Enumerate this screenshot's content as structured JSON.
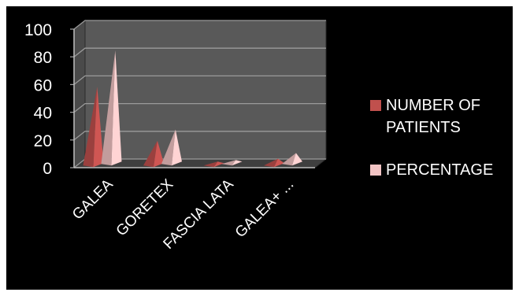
{
  "chart_data": {
    "type": "bar",
    "style": "3d-pyramid",
    "title": "",
    "xlabel": "",
    "ylabel": "",
    "ylim": [
      0,
      100
    ],
    "yticks": [
      0,
      20,
      40,
      60,
      80,
      100
    ],
    "grid": true,
    "legend_position": "right",
    "categories": [
      "GALEA",
      "GORETEX",
      "FASCIA LATA",
      "GALEA+ ..."
    ],
    "series": [
      {
        "name": "NUMBER OF PATIENTS",
        "values": [
          55,
          16,
          1,
          3
        ],
        "color": "#c0504d"
      },
      {
        "name": "PERCENTAGE",
        "values": [
          80,
          23,
          1,
          6
        ],
        "color": "#f2c4c4"
      }
    ]
  },
  "colors": {
    "background": "#000000",
    "back_wall": "#595959",
    "floor": "#3f3f3f",
    "gridline": "#9a9a9a",
    "text": "#ffffff"
  }
}
